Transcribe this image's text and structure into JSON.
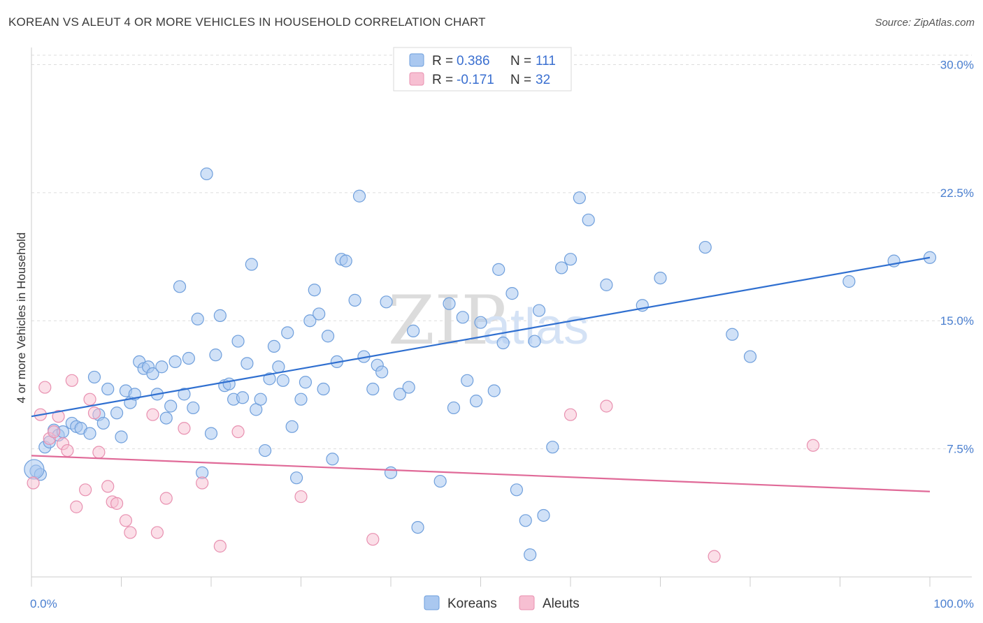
{
  "title": "KOREAN VS ALEUT 4 OR MORE VEHICLES IN HOUSEHOLD CORRELATION CHART",
  "source": "Source: ZipAtlas.com",
  "colors": {
    "korean_fill": "#aac8f0",
    "korean_stroke": "#6f9fdc",
    "korean_line": "#2f6fd0",
    "aleut_fill": "#f7bfd2",
    "aleut_stroke": "#e890b0",
    "aleut_line": "#e06a98",
    "grid": "#dddddd",
    "tick_text": "#4a7fd0"
  },
  "legend": {
    "rows": [
      {
        "r_label": "R = ",
        "r_value": "0.386",
        "n_label": "N = ",
        "n_value": "111"
      },
      {
        "r_label": "R = ",
        "r_value": "-0.171",
        "n_label": "N = ",
        "n_value": "32"
      }
    ]
  },
  "watermark": {
    "zip": "ZIP",
    "atlas": "atlas"
  },
  "chart_data": {
    "type": "scatter",
    "title": "KOREAN VS ALEUT 4 OR MORE VEHICLES IN HOUSEHOLD CORRELATION CHART",
    "xlabel": "",
    "ylabel": "4 or more Vehicles in Household",
    "xlim": [
      0,
      100
    ],
    "ylim": [
      0,
      31
    ],
    "x_tick_labels": [
      "0.0%",
      "100.0%"
    ],
    "y_ticks": [
      7.5,
      15.0,
      22.5,
      30.0
    ],
    "y_tick_labels": [
      "7.5%",
      "15.0%",
      "22.5%",
      "30.0%"
    ],
    "grid": true,
    "legend_position": "top-center",
    "series": [
      {
        "name": "Koreans",
        "trend": {
          "x": [
            0,
            100
          ],
          "y": [
            9.4,
            18.7
          ]
        },
        "points": [
          [
            0.5,
            6.2
          ],
          [
            1.0,
            6.0
          ],
          [
            1.5,
            7.6
          ],
          [
            2.0,
            7.9
          ],
          [
            2.5,
            8.6
          ],
          [
            3.0,
            8.3
          ],
          [
            3.5,
            8.5
          ],
          [
            4.5,
            9.0
          ],
          [
            5.0,
            8.8
          ],
          [
            5.5,
            8.7
          ],
          [
            6.5,
            8.4
          ],
          [
            7.0,
            11.7
          ],
          [
            7.5,
            9.5
          ],
          [
            8.0,
            9.0
          ],
          [
            8.5,
            11.0
          ],
          [
            9.5,
            9.6
          ],
          [
            10.0,
            8.2
          ],
          [
            10.5,
            10.9
          ],
          [
            11.0,
            10.2
          ],
          [
            11.5,
            10.7
          ],
          [
            12.0,
            12.6
          ],
          [
            12.5,
            12.2
          ],
          [
            13.0,
            12.3
          ],
          [
            13.5,
            11.9
          ],
          [
            14.0,
            10.7
          ],
          [
            14.5,
            12.3
          ],
          [
            15.0,
            9.3
          ],
          [
            15.5,
            10.0
          ],
          [
            16.0,
            12.6
          ],
          [
            16.5,
            17.0
          ],
          [
            17.0,
            10.7
          ],
          [
            17.5,
            12.8
          ],
          [
            18.0,
            9.9
          ],
          [
            18.5,
            15.1
          ],
          [
            19.0,
            6.1
          ],
          [
            19.5,
            23.6
          ],
          [
            20.0,
            8.4
          ],
          [
            20.5,
            13.0
          ],
          [
            21.0,
            15.3
          ],
          [
            21.5,
            11.2
          ],
          [
            22.0,
            11.3
          ],
          [
            22.5,
            10.4
          ],
          [
            23.0,
            13.8
          ],
          [
            23.5,
            10.5
          ],
          [
            24.0,
            12.5
          ],
          [
            24.5,
            18.3
          ],
          [
            25.0,
            9.8
          ],
          [
            25.5,
            10.4
          ],
          [
            26.0,
            7.4
          ],
          [
            26.5,
            11.6
          ],
          [
            27.0,
            13.5
          ],
          [
            27.5,
            12.3
          ],
          [
            28.0,
            11.5
          ],
          [
            28.5,
            14.3
          ],
          [
            29.0,
            8.8
          ],
          [
            29.5,
            5.8
          ],
          [
            30.0,
            10.4
          ],
          [
            30.5,
            11.4
          ],
          [
            31.0,
            15.0
          ],
          [
            31.5,
            16.8
          ],
          [
            32.0,
            15.4
          ],
          [
            32.5,
            11.0
          ],
          [
            33.0,
            14.1
          ],
          [
            33.5,
            6.9
          ],
          [
            34.0,
            12.6
          ],
          [
            34.5,
            18.6
          ],
          [
            35.0,
            18.5
          ],
          [
            36.0,
            16.2
          ],
          [
            36.5,
            22.3
          ],
          [
            37.0,
            12.9
          ],
          [
            38.0,
            11.0
          ],
          [
            38.5,
            12.4
          ],
          [
            39.0,
            12.0
          ],
          [
            39.5,
            16.1
          ],
          [
            40.0,
            6.1
          ],
          [
            41.0,
            10.7
          ],
          [
            42.0,
            11.1
          ],
          [
            42.5,
            14.4
          ],
          [
            43.0,
            2.9
          ],
          [
            45.0,
            28.9
          ],
          [
            45.5,
            5.6
          ],
          [
            46.5,
            16.0
          ],
          [
            47.0,
            9.9
          ],
          [
            48.0,
            15.2
          ],
          [
            48.5,
            11.5
          ],
          [
            49.5,
            10.3
          ],
          [
            50.0,
            14.9
          ],
          [
            51.5,
            10.9
          ],
          [
            52.0,
            18.0
          ],
          [
            52.5,
            13.7
          ],
          [
            53.5,
            16.6
          ],
          [
            54.0,
            5.1
          ],
          [
            55.0,
            3.3
          ],
          [
            55.5,
            1.3
          ],
          [
            56.0,
            13.8
          ],
          [
            56.5,
            15.6
          ],
          [
            57.0,
            3.6
          ],
          [
            58.0,
            7.6
          ],
          [
            59.0,
            18.1
          ],
          [
            60.0,
            18.6
          ],
          [
            61.0,
            22.2
          ],
          [
            62.0,
            20.9
          ],
          [
            64.0,
            17.1
          ],
          [
            68.0,
            15.9
          ],
          [
            70.0,
            17.5
          ],
          [
            75.0,
            19.3
          ],
          [
            78.0,
            14.2
          ],
          [
            80.0,
            12.9
          ],
          [
            91.0,
            17.3
          ],
          [
            96.0,
            18.5
          ],
          [
            100.0,
            18.7
          ]
        ]
      },
      {
        "name": "Aleuts",
        "trend": {
          "x": [
            0,
            100
          ],
          "y": [
            7.1,
            5.0
          ]
        },
        "points": [
          [
            0.2,
            5.5
          ],
          [
            1.0,
            9.5
          ],
          [
            1.5,
            11.1
          ],
          [
            2.0,
            8.1
          ],
          [
            2.5,
            8.5
          ],
          [
            3.0,
            9.4
          ],
          [
            3.5,
            7.8
          ],
          [
            4.0,
            7.4
          ],
          [
            4.5,
            11.5
          ],
          [
            5.0,
            4.1
          ],
          [
            6.0,
            5.1
          ],
          [
            6.5,
            10.4
          ],
          [
            7.0,
            9.6
          ],
          [
            7.5,
            7.3
          ],
          [
            8.5,
            5.3
          ],
          [
            9.0,
            4.4
          ],
          [
            9.5,
            4.3
          ],
          [
            10.5,
            3.3
          ],
          [
            11.0,
            2.6
          ],
          [
            13.5,
            9.5
          ],
          [
            14.0,
            2.6
          ],
          [
            15.0,
            4.6
          ],
          [
            17.0,
            8.7
          ],
          [
            19.0,
            5.5
          ],
          [
            21.0,
            1.8
          ],
          [
            23.0,
            8.5
          ],
          [
            30.0,
            4.7
          ],
          [
            38.0,
            2.2
          ],
          [
            60.0,
            9.5
          ],
          [
            64.0,
            10.0
          ],
          [
            76.0,
            1.2
          ],
          [
            87.0,
            7.7
          ]
        ]
      }
    ]
  }
}
